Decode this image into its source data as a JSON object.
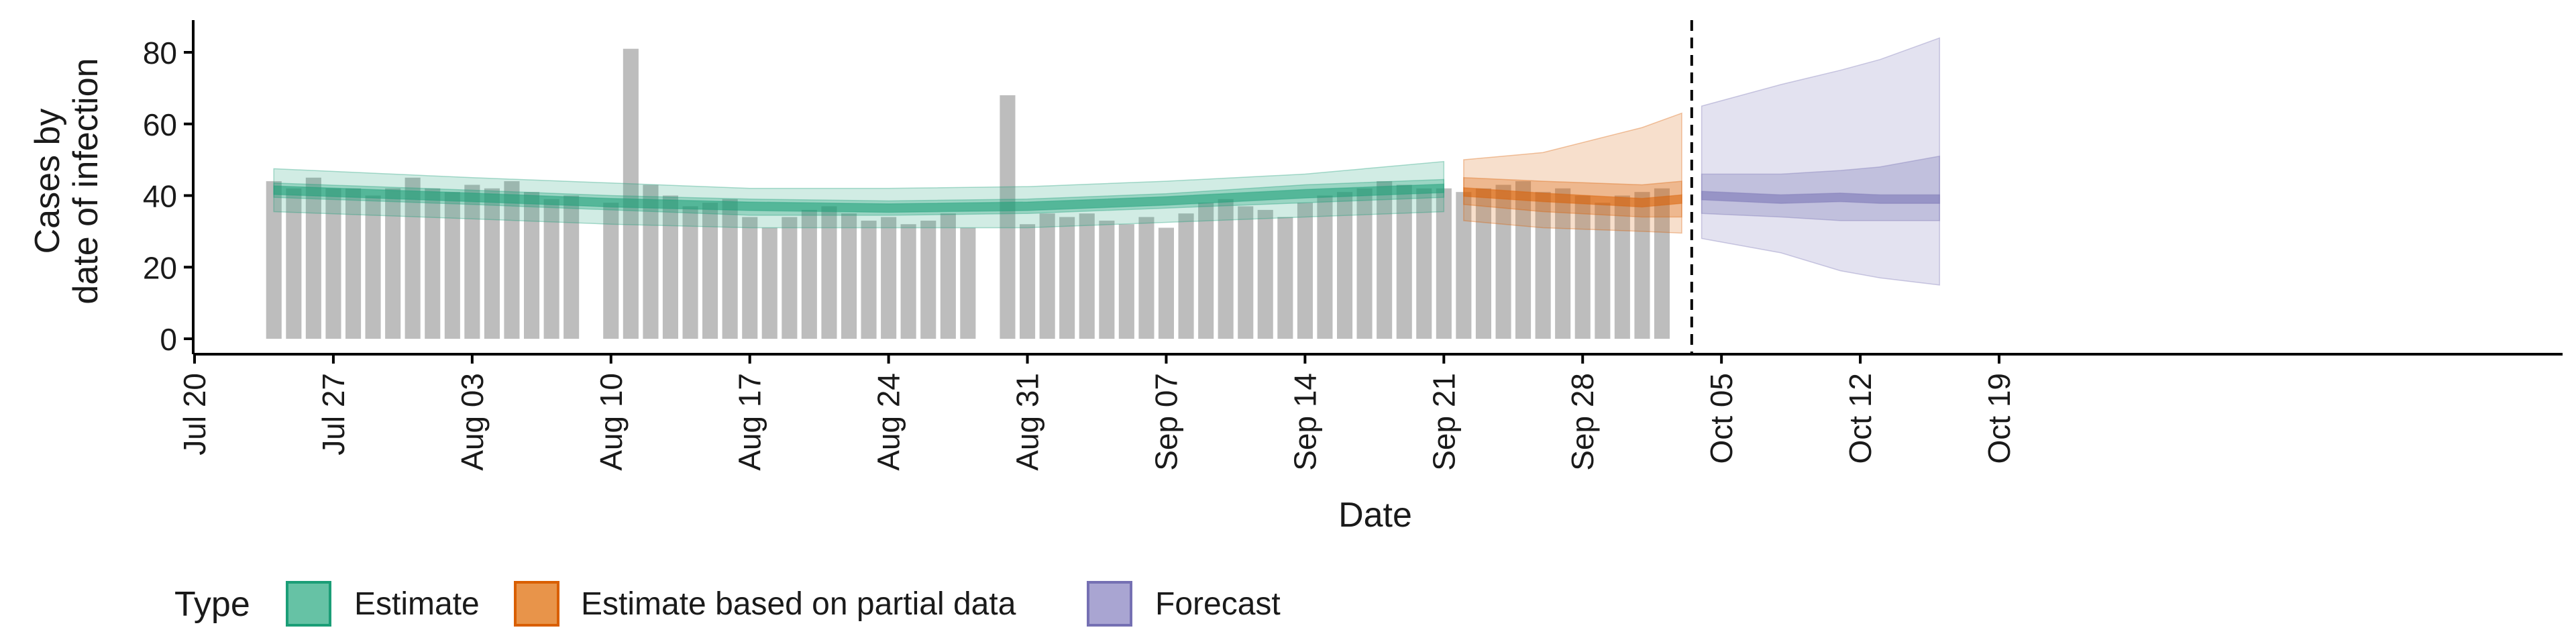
{
  "chart_data": {
    "type": "bar",
    "title": "",
    "xlabel": "Date",
    "ylabel_lines": [
      "Cases by",
      "date of infection"
    ],
    "ylim": [
      0,
      88
    ],
    "y_ticks": [
      0,
      20,
      40,
      60,
      80
    ],
    "x_range": [
      "2020-07-20",
      "2020-10-20"
    ],
    "x_ticks": [
      {
        "date": "2020-07-20",
        "label": "Jul 20"
      },
      {
        "date": "2020-07-27",
        "label": "Jul 27"
      },
      {
        "date": "2020-08-03",
        "label": "Aug 03"
      },
      {
        "date": "2020-08-10",
        "label": "Aug 10"
      },
      {
        "date": "2020-08-17",
        "label": "Aug 17"
      },
      {
        "date": "2020-08-24",
        "label": "Aug 24"
      },
      {
        "date": "2020-08-31",
        "label": "Aug 31"
      },
      {
        "date": "2020-09-07",
        "label": "Sep 07"
      },
      {
        "date": "2020-09-14",
        "label": "Sep 14"
      },
      {
        "date": "2020-09-21",
        "label": "Sep 21"
      },
      {
        "date": "2020-09-28",
        "label": "Sep 28"
      },
      {
        "date": "2020-10-05",
        "label": "Oct 05"
      },
      {
        "date": "2020-10-12",
        "label": "Oct 12"
      },
      {
        "date": "2020-10-19",
        "label": "Oct 19"
      }
    ],
    "bars_start_date": "2020-07-24",
    "bar_values": [
      44,
      42,
      45,
      42,
      42,
      40,
      42,
      45,
      42,
      41,
      43,
      42,
      44,
      41,
      39,
      40,
      null,
      38,
      81,
      43,
      40,
      37,
      38,
      39,
      34,
      31,
      34,
      36,
      37,
      35,
      33,
      34,
      32,
      33,
      35,
      31,
      null,
      68,
      32,
      35,
      34,
      35,
      33,
      32,
      34,
      31,
      35,
      38,
      39,
      37,
      36,
      34,
      38,
      40,
      41,
      42,
      44,
      43,
      42,
      42,
      41,
      42,
      43,
      44,
      41,
      42,
      40,
      38,
      40,
      41,
      42
    ],
    "estimate_dates": [
      "2020-07-24",
      "2020-08-03",
      "2020-08-10",
      "2020-08-17",
      "2020-08-24",
      "2020-08-31",
      "2020-09-07",
      "2020-09-14",
      "2020-09-21"
    ],
    "estimate_median": [
      41.5,
      39.5,
      38,
      37,
      36.5,
      37,
      38.5,
      40.5,
      42
    ],
    "estimate_ci50": [
      [
        39.5,
        43.5
      ],
      [
        37.5,
        41.5
      ],
      [
        36,
        40
      ],
      [
        34.5,
        39
      ],
      [
        34.5,
        38.5
      ],
      [
        35,
        39
      ],
      [
        36.5,
        40.5
      ],
      [
        38,
        43
      ],
      [
        39.5,
        44.5
      ]
    ],
    "estimate_ci90": [
      [
        35.5,
        47.5
      ],
      [
        33.5,
        45
      ],
      [
        32,
        43.5
      ],
      [
        31,
        42
      ],
      [
        31,
        42
      ],
      [
        31,
        42.5
      ],
      [
        32.5,
        44
      ],
      [
        34,
        46
      ],
      [
        35.5,
        49.5
      ]
    ],
    "partial_dates": [
      "2020-09-22",
      "2020-09-26",
      "2020-10-01",
      "2020-10-03"
    ],
    "partial_median": [
      41,
      39.5,
      38,
      39
    ],
    "partial_ci50": [
      [
        37.5,
        45
      ],
      [
        35.5,
        44
      ],
      [
        34,
        43
      ],
      [
        34,
        44
      ]
    ],
    "partial_ci90": [
      [
        33,
        50
      ],
      [
        31,
        52
      ],
      [
        30,
        59
      ],
      [
        29.5,
        63
      ]
    ],
    "forecast_dates": [
      "2020-10-04",
      "2020-10-08",
      "2020-10-11",
      "2020-10-13",
      "2020-10-16"
    ],
    "forecast_median": [
      40,
      39,
      39.5,
      39,
      39
    ],
    "forecast_ci50": [
      [
        35,
        46
      ],
      [
        34,
        46
      ],
      [
        33,
        47
      ],
      [
        33,
        48
      ],
      [
        33,
        51
      ]
    ],
    "forecast_ci90": [
      [
        28,
        65
      ],
      [
        24,
        71
      ],
      [
        19,
        75
      ],
      [
        17,
        78
      ],
      [
        15,
        84
      ]
    ],
    "dashed_line_date": "2020-10-03",
    "legend": {
      "title": "Type",
      "items": [
        {
          "label": "Estimate",
          "fill": "#66c2a5",
          "stroke": "#1b9e77"
        },
        {
          "label": "Estimate based on partial data",
          "fill": "#e8944a",
          "stroke": "#d95f02"
        },
        {
          "label": "Forecast",
          "fill": "#a9a5d2",
          "stroke": "#7570b3"
        }
      ],
      "placement": "bottom"
    },
    "colors": {
      "bars": "#bdbdbd",
      "estimate": "#1b9e77",
      "partial": "#d95f02",
      "forecast": "#7570b3"
    },
    "grid": false
  }
}
